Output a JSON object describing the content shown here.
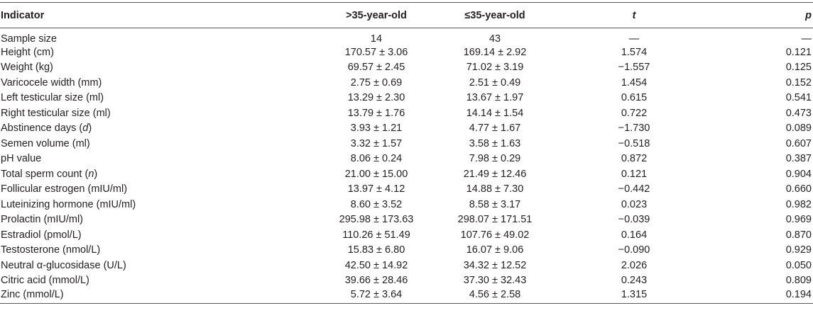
{
  "table": {
    "header": [
      "Indicator",
      ">35-year-old",
      "≤35-year-old",
      "t",
      "p"
    ],
    "rows": [
      [
        [
          "Sample size"
        ],
        "14",
        "43",
        "—",
        "—"
      ],
      [
        [
          "Height (cm)"
        ],
        "170.57 ± 3.06",
        "169.14 ± 2.92",
        "1.574",
        "0.121"
      ],
      [
        [
          "Weight (kg)"
        ],
        "69.57 ± 2.45",
        "71.02 ± 3.19",
        "−1.557",
        "0.125"
      ],
      [
        [
          "Varicocele width (mm)"
        ],
        "2.75 ± 0.69",
        "2.51 ± 0.49",
        "1.454",
        "0.152"
      ],
      [
        [
          "Left testicular size (ml)"
        ],
        "13.29 ± 2.30",
        "13.67 ± 1.97",
        "0.615",
        "0.541"
      ],
      [
        [
          "Right testicular size (ml)"
        ],
        "13.79 ± 1.76",
        "14.14 ± 1.54",
        "0.722",
        "0.473"
      ],
      [
        [
          "Abstinence days (",
          "d",
          ")"
        ],
        "3.93 ± 1.21",
        "4.77 ± 1.67",
        "−1.730",
        "0.089"
      ],
      [
        [
          "Semen volume (ml)"
        ],
        "3.32 ± 1.57",
        "3.58 ± 1.63",
        "−0.518",
        "0.607"
      ],
      [
        [
          "pH value"
        ],
        "8.06 ± 0.24",
        "7.98 ± 0.29",
        "0.872",
        "0.387"
      ],
      [
        [
          "Total sperm count (",
          "n",
          ")"
        ],
        "21.00 ± 15.00",
        "21.49 ± 12.46",
        "0.121",
        "0.904"
      ],
      [
        [
          "Follicular estrogen (mIU/ml)"
        ],
        "13.97 ± 4.12",
        "14.88 ± 7.30",
        "−0.442",
        "0.660"
      ],
      [
        [
          "Luteinizing hormone (mIU/ml)"
        ],
        "8.60 ± 3.52",
        "8.58 ± 3.17",
        "0.023",
        "0.982"
      ],
      [
        [
          "Prolactin (mIU/ml)"
        ],
        "295.98 ± 173.63",
        "298.07 ± 171.51",
        "−0.039",
        "0.969"
      ],
      [
        [
          "Estradiol (pmol/L)"
        ],
        "110.26 ± 51.49",
        "107.76 ± 49.02",
        "0.164",
        "0.870"
      ],
      [
        [
          "Testosterone (nmol/L)"
        ],
        "15.83 ± 6.80",
        "16.07 ± 9.06",
        "−0.090",
        "0.929"
      ],
      [
        [
          "Neutral α-glucosidase (U/L)"
        ],
        "42.50 ± 14.92",
        "34.32 ± 12.52",
        "2.026",
        "0.050"
      ],
      [
        [
          "Citric acid (mmol/L)"
        ],
        "39.66 ± 28.46",
        "37.30 ± 32.43",
        "0.243",
        "0.809"
      ],
      [
        [
          "Zinc (mmol/L)"
        ],
        "5.72 ± 3.64",
        "4.56 ± 2.58",
        "1.315",
        "0.194"
      ]
    ]
  }
}
